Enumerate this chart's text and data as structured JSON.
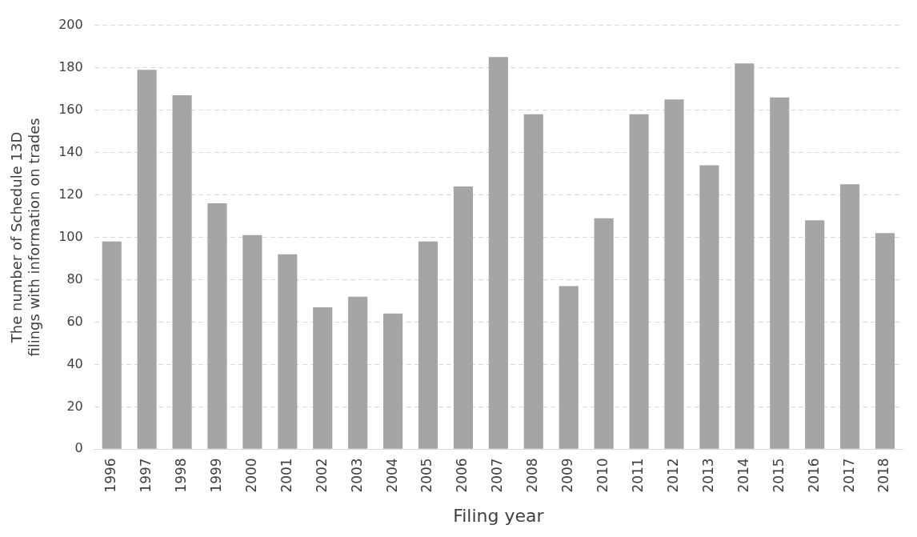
{
  "chart_data": {
    "type": "bar",
    "xlabel": "Filing year",
    "ylabel": "The number of Schedule 13D filings with information on trades",
    "categories": [
      "1996",
      "1997",
      "1998",
      "1999",
      "2000",
      "2001",
      "2002",
      "2003",
      "2004",
      "2005",
      "2006",
      "2007",
      "2008",
      "2009",
      "2010",
      "2011",
      "2012",
      "2013",
      "2014",
      "2015",
      "2016",
      "2017",
      "2018"
    ],
    "values": [
      98,
      179,
      167,
      116,
      101,
      92,
      67,
      72,
      64,
      98,
      124,
      185,
      158,
      77,
      109,
      158,
      165,
      134,
      182,
      166,
      108,
      125,
      102
    ],
    "color": "#a5a5a5",
    "ylim": [
      0,
      200
    ],
    "yticks": [
      0,
      20,
      40,
      60,
      80,
      100,
      120,
      140,
      160,
      180,
      200
    ],
    "grid": "y",
    "legend": false
  }
}
